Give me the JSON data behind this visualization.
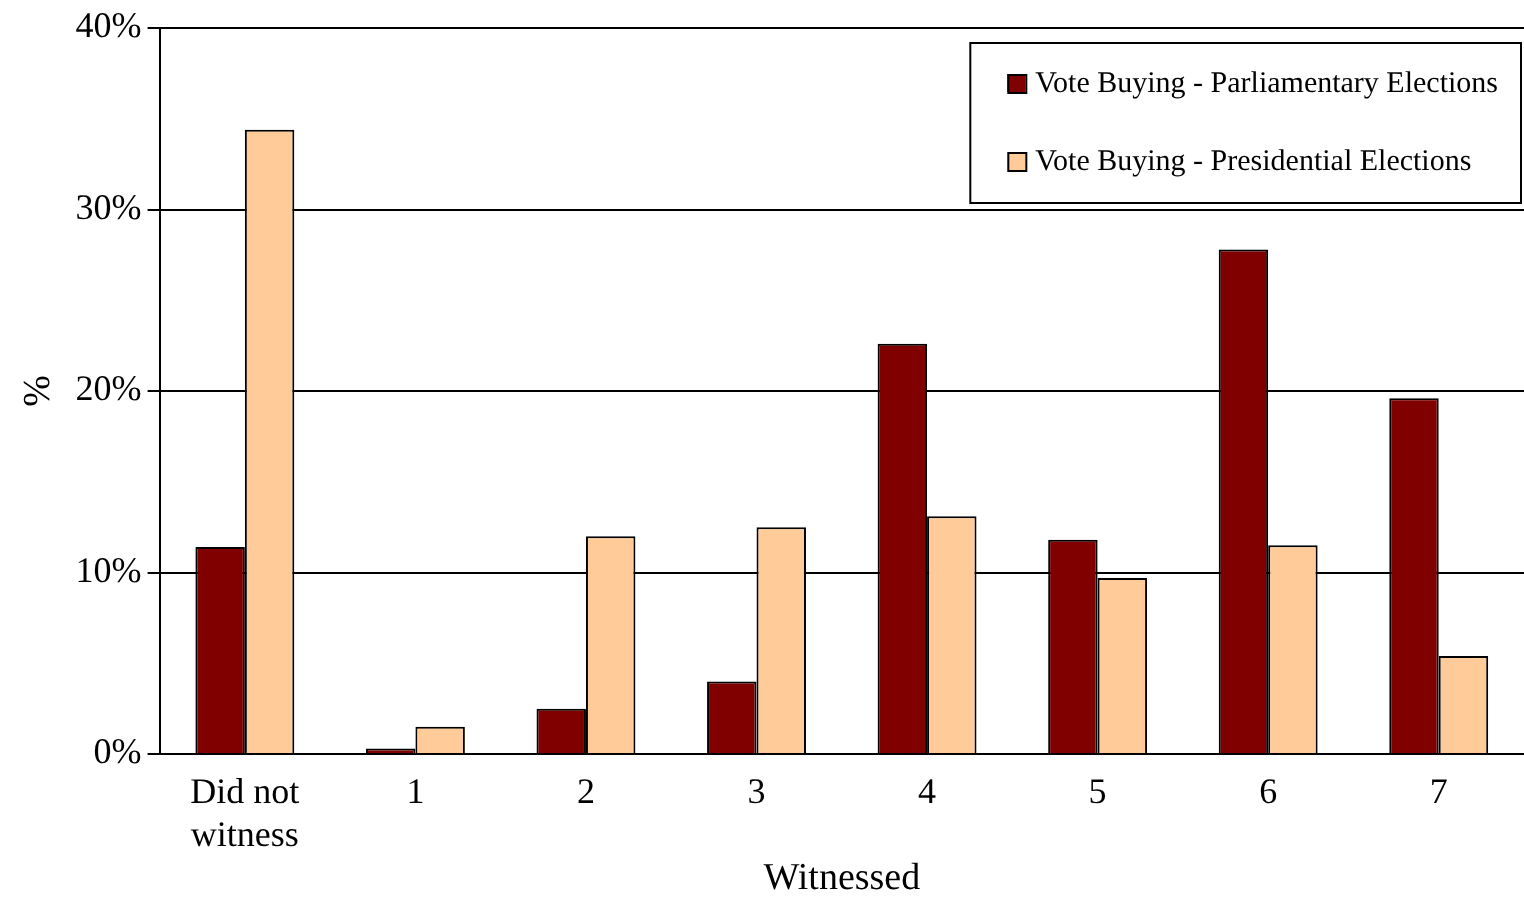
{
  "chart_data": {
    "type": "bar",
    "xlabel": "Witnessed",
    "ylabel": "%",
    "categories": [
      "Did not witness",
      "1",
      "2",
      "3",
      "4",
      "5",
      "6",
      "7"
    ],
    "series": [
      {
        "name": "Vote Buying - Parliamentary Elections",
        "color": "#800000",
        "values": [
          11.4,
          0.3,
          2.5,
          4.0,
          22.6,
          11.8,
          27.8,
          19.6
        ]
      },
      {
        "name": "Vote Buying - Presidential Elections",
        "color": "#ffcc99",
        "values": [
          34.4,
          1.5,
          12.0,
          12.5,
          13.1,
          9.7,
          11.5,
          5.4
        ]
      }
    ],
    "ylim": [
      0,
      40
    ],
    "yticks": [
      {
        "value": 0,
        "label": "0%"
      },
      {
        "value": 10,
        "label": "10%"
      },
      {
        "value": 20,
        "label": "20%"
      },
      {
        "value": 30,
        "label": "30%"
      },
      {
        "value": 40,
        "label": "40%"
      }
    ],
    "grid": "y",
    "legend": "top right"
  }
}
